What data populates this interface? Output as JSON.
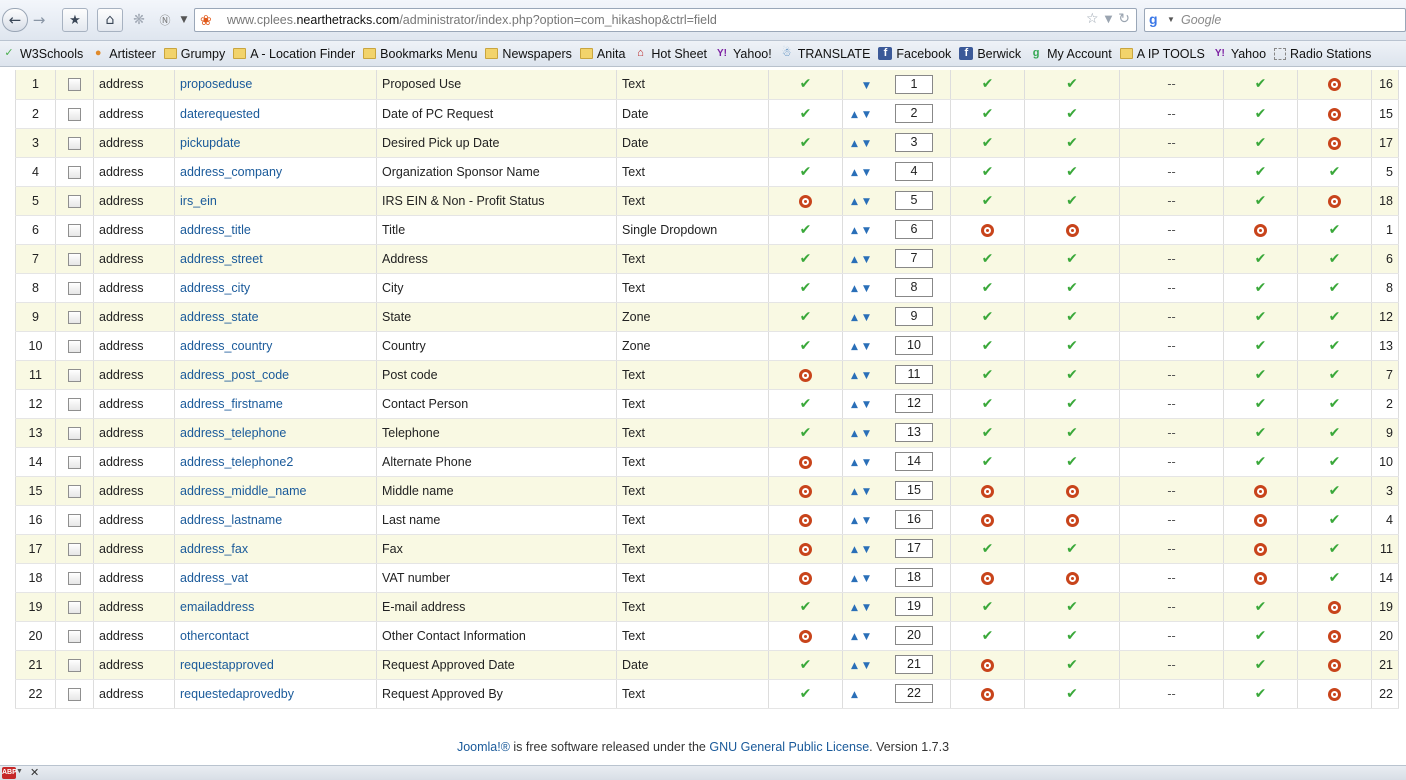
{
  "browser": {
    "url_prefix": "www.cplees.",
    "url_domain": "nearthetracks.com",
    "url_path": "/administrator/index.php?option=com_hikashop&ctrl=field",
    "search_placeholder": "Google"
  },
  "bookmarks": [
    {
      "label": "W3Schools",
      "icon": "w3schools-icon"
    },
    {
      "label": "Artisteer",
      "icon": "artisteer-icon"
    },
    {
      "label": "Grumpy",
      "icon": "folder-icon"
    },
    {
      "label": "A - Location Finder",
      "icon": "folder-icon"
    },
    {
      "label": "Bookmarks Menu",
      "icon": "folder-icon"
    },
    {
      "label": "Newspapers",
      "icon": "folder-icon"
    },
    {
      "label": "Anita",
      "icon": "folder-icon"
    },
    {
      "label": "Hot Sheet",
      "icon": "hotsheet-icon"
    },
    {
      "label": "Yahoo!",
      "icon": "yahoo-icon"
    },
    {
      "label": "TRANSLATE",
      "icon": "translate-icon"
    },
    {
      "label": "Facebook",
      "icon": "facebook-icon"
    },
    {
      "label": "Berwick",
      "icon": "facebook-icon"
    },
    {
      "label": "My Account",
      "icon": "google-account-icon"
    },
    {
      "label": "A IP TOOLS",
      "icon": "folder-icon"
    },
    {
      "label": "Yahoo",
      "icon": "yahoo-icon"
    },
    {
      "label": "Radio Stations",
      "icon": "radio-icon"
    }
  ],
  "rows": [
    {
      "num": "1",
      "table": "address",
      "column": "proposeduse",
      "label": "Proposed Use",
      "type": "Text",
      "required": "check",
      "up": false,
      "down": true,
      "order": "1",
      "c1": "check",
      "c2": "check",
      "c3": "--",
      "c4": "check",
      "c5": "dot",
      "id": "16"
    },
    {
      "num": "2",
      "table": "address",
      "column": "daterequested",
      "label": "Date of PC Request",
      "type": "Date",
      "required": "check",
      "up": true,
      "down": true,
      "order": "2",
      "c1": "check",
      "c2": "check",
      "c3": "--",
      "c4": "check",
      "c5": "dot",
      "id": "15"
    },
    {
      "num": "3",
      "table": "address",
      "column": "pickupdate",
      "label": "Desired Pick up Date",
      "type": "Date",
      "required": "check",
      "up": true,
      "down": true,
      "order": "3",
      "c1": "check",
      "c2": "check",
      "c3": "--",
      "c4": "check",
      "c5": "dot",
      "id": "17"
    },
    {
      "num": "4",
      "table": "address",
      "column": "address_company",
      "label": "Organization Sponsor Name",
      "type": "Text",
      "required": "check",
      "up": true,
      "down": true,
      "order": "4",
      "c1": "check",
      "c2": "check",
      "c3": "--",
      "c4": "check",
      "c5": "check",
      "id": "5"
    },
    {
      "num": "5",
      "table": "address",
      "column": "irs_ein",
      "label": "IRS EIN & Non - Profit Status",
      "type": "Text",
      "required": "dot",
      "up": true,
      "down": true,
      "order": "5",
      "c1": "check",
      "c2": "check",
      "c3": "--",
      "c4": "check",
      "c5": "dot",
      "id": "18"
    },
    {
      "num": "6",
      "table": "address",
      "column": "address_title",
      "label": "Title",
      "type": "Single Dropdown",
      "required": "check",
      "up": true,
      "down": true,
      "order": "6",
      "c1": "dot",
      "c2": "dot",
      "c3": "--",
      "c4": "dot",
      "c5": "check",
      "id": "1"
    },
    {
      "num": "7",
      "table": "address",
      "column": "address_street",
      "label": "Address",
      "type": "Text",
      "required": "check",
      "up": true,
      "down": true,
      "order": "7",
      "c1": "check",
      "c2": "check",
      "c3": "--",
      "c4": "check",
      "c5": "check",
      "id": "6"
    },
    {
      "num": "8",
      "table": "address",
      "column": "address_city",
      "label": "City",
      "type": "Text",
      "required": "check",
      "up": true,
      "down": true,
      "order": "8",
      "c1": "check",
      "c2": "check",
      "c3": "--",
      "c4": "check",
      "c5": "check",
      "id": "8"
    },
    {
      "num": "9",
      "table": "address",
      "column": "address_state",
      "label": "State",
      "type": "Zone",
      "required": "check",
      "up": true,
      "down": true,
      "order": "9",
      "c1": "check",
      "c2": "check",
      "c3": "--",
      "c4": "check",
      "c5": "check",
      "id": "12"
    },
    {
      "num": "10",
      "table": "address",
      "column": "address_country",
      "label": "Country",
      "type": "Zone",
      "required": "check",
      "up": true,
      "down": true,
      "order": "10",
      "c1": "check",
      "c2": "check",
      "c3": "--",
      "c4": "check",
      "c5": "check",
      "id": "13"
    },
    {
      "num": "11",
      "table": "address",
      "column": "address_post_code",
      "label": "Post code",
      "type": "Text",
      "required": "dot",
      "up": true,
      "down": true,
      "order": "11",
      "c1": "check",
      "c2": "check",
      "c3": "--",
      "c4": "check",
      "c5": "check",
      "id": "7"
    },
    {
      "num": "12",
      "table": "address",
      "column": "address_firstname",
      "label": "Contact Person",
      "type": "Text",
      "required": "check",
      "up": true,
      "down": true,
      "order": "12",
      "c1": "check",
      "c2": "check",
      "c3": "--",
      "c4": "check",
      "c5": "check",
      "id": "2"
    },
    {
      "num": "13",
      "table": "address",
      "column": "address_telephone",
      "label": "Telephone",
      "type": "Text",
      "required": "check",
      "up": true,
      "down": true,
      "order": "13",
      "c1": "check",
      "c2": "check",
      "c3": "--",
      "c4": "check",
      "c5": "check",
      "id": "9"
    },
    {
      "num": "14",
      "table": "address",
      "column": "address_telephone2",
      "label": "Alternate Phone",
      "type": "Text",
      "required": "dot",
      "up": true,
      "down": true,
      "order": "14",
      "c1": "check",
      "c2": "check",
      "c3": "--",
      "c4": "check",
      "c5": "check",
      "id": "10"
    },
    {
      "num": "15",
      "table": "address",
      "column": "address_middle_name",
      "label": "Middle name",
      "type": "Text",
      "required": "dot",
      "up": true,
      "down": true,
      "order": "15",
      "c1": "dot",
      "c2": "dot",
      "c3": "--",
      "c4": "dot",
      "c5": "check",
      "id": "3"
    },
    {
      "num": "16",
      "table": "address",
      "column": "address_lastname",
      "label": "Last name",
      "type": "Text",
      "required": "dot",
      "up": true,
      "down": true,
      "order": "16",
      "c1": "dot",
      "c2": "dot",
      "c3": "--",
      "c4": "dot",
      "c5": "check",
      "id": "4"
    },
    {
      "num": "17",
      "table": "address",
      "column": "address_fax",
      "label": "Fax",
      "type": "Text",
      "required": "dot",
      "up": true,
      "down": true,
      "order": "17",
      "c1": "check",
      "c2": "check",
      "c3": "--",
      "c4": "dot",
      "c5": "check",
      "id": "11"
    },
    {
      "num": "18",
      "table": "address",
      "column": "address_vat",
      "label": "VAT number",
      "type": "Text",
      "required": "dot",
      "up": true,
      "down": true,
      "order": "18",
      "c1": "dot",
      "c2": "dot",
      "c3": "--",
      "c4": "dot",
      "c5": "check",
      "id": "14"
    },
    {
      "num": "19",
      "table": "address",
      "column": "emailaddress",
      "label": "E-mail address",
      "type": "Text",
      "required": "check",
      "up": true,
      "down": true,
      "order": "19",
      "c1": "check",
      "c2": "check",
      "c3": "--",
      "c4": "check",
      "c5": "dot",
      "id": "19"
    },
    {
      "num": "20",
      "table": "address",
      "column": "othercontact",
      "label": "Other Contact Information",
      "type": "Text",
      "required": "dot",
      "up": true,
      "down": true,
      "order": "20",
      "c1": "check",
      "c2": "check",
      "c3": "--",
      "c4": "check",
      "c5": "dot",
      "id": "20"
    },
    {
      "num": "21",
      "table": "address",
      "column": "requestapproved",
      "label": "Request Approved Date",
      "type": "Date",
      "required": "check",
      "up": true,
      "down": true,
      "order": "21",
      "c1": "dot",
      "c2": "check",
      "c3": "--",
      "c4": "check",
      "c5": "dot",
      "id": "21"
    },
    {
      "num": "22",
      "table": "address",
      "column": "requestedaprovedby",
      "label": "Request Approved By",
      "type": "Text",
      "required": "check",
      "up": true,
      "down": false,
      "order": "22",
      "c1": "dot",
      "c2": "check",
      "c3": "--",
      "c4": "check",
      "c5": "dot",
      "id": "22"
    }
  ],
  "footer": {
    "joomla_link": "Joomla!®",
    "text_mid": " is free software released under the ",
    "license_link": "GNU General Public License",
    "version": ". Version 1.7.3"
  },
  "colors": {
    "check": "#3aa83a",
    "dot": "#c8441b",
    "link": "#1a5a9a",
    "row_odd": "#f9f9e3"
  }
}
